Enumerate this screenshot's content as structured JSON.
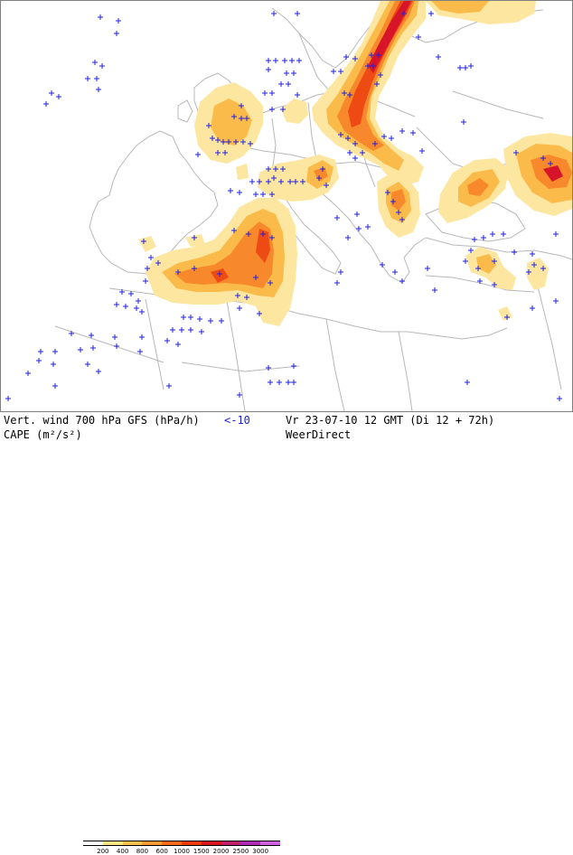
{
  "legend": {
    "line1_left": "Vert. wind 700 hPa GFS (hPa/h)",
    "line1_mid": "<-10",
    "line1_right": "Vr 23-07-10 12 GMT (Di 12 + 72h)",
    "line2_left": "CAPE (m²/s²)",
    "line2_right": "WeerDirect",
    "scale_ticks": [
      "200",
      "400",
      "800",
      "600",
      "1000",
      "1500",
      "2000",
      "2500",
      "3000"
    ],
    "scale_colors": [
      "#ffffff",
      "#ffe680",
      "#ffc34d",
      "#ff9a33",
      "#ff6a1a",
      "#f03a0a",
      "#d8141e",
      "#c0206a",
      "#b02ab8",
      "#d060e0"
    ]
  },
  "colors": {
    "cape_low": "#fde6a0",
    "cape_mid": "#fbbb4a",
    "cape_high": "#f7892c",
    "cape_vhigh": "#ee4a14",
    "cape_extreme": "#d8142a",
    "cape_max": "#b82ab0",
    "markers": "#2020e0",
    "coast": "#b8b8b8"
  },
  "icons": {
    "updraft_marker": "plus-icon"
  }
}
